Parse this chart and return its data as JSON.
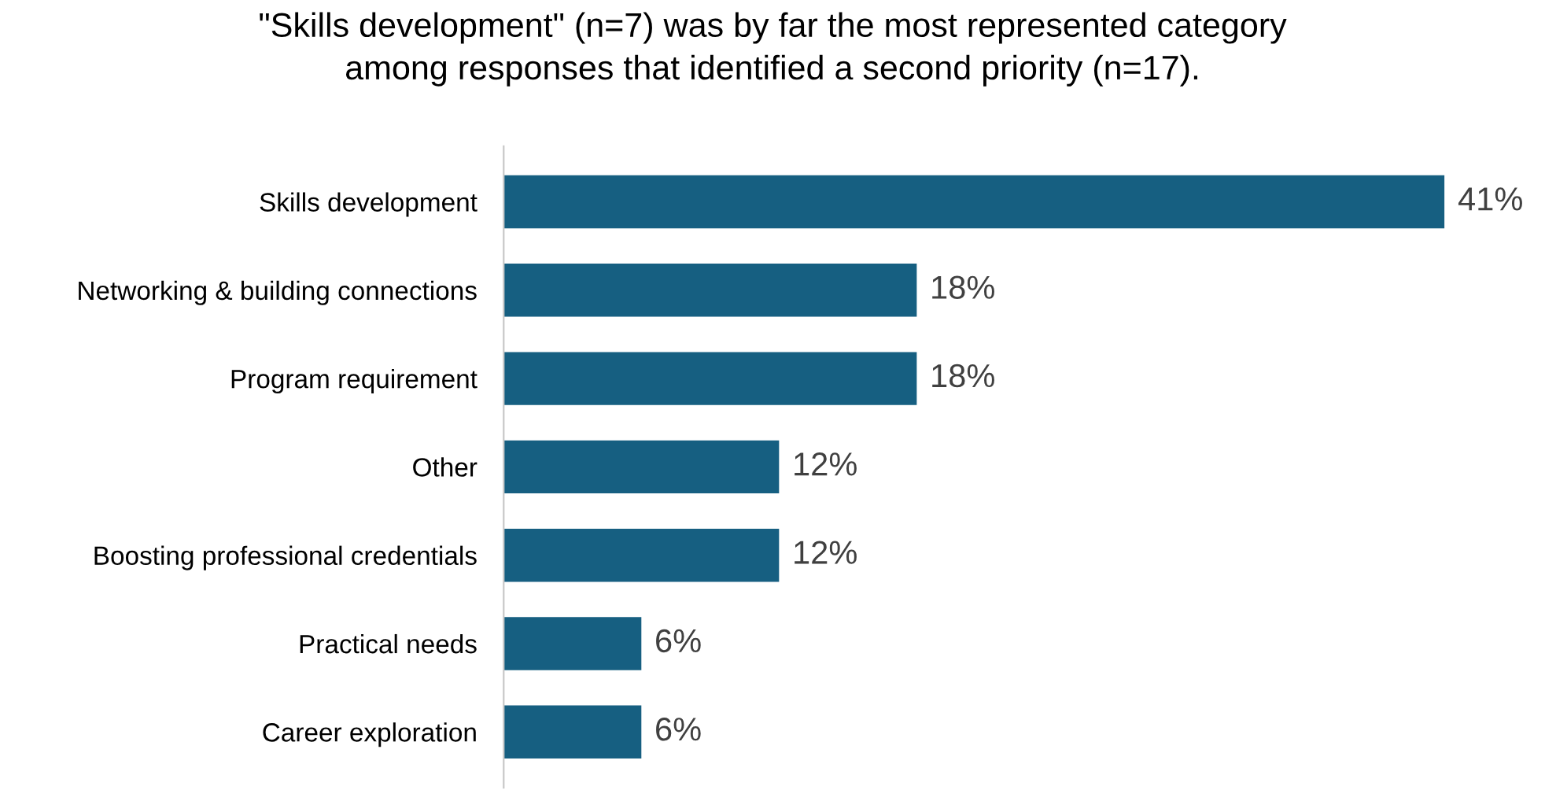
{
  "chart_data": {
    "type": "bar",
    "orientation": "horizontal",
    "title": "\"Skills development\" (n=7) was by far the most represented category\namong responses that identified a second priority (n=17).",
    "categories": [
      "Skills development",
      "Networking & building connections",
      "Program requirement",
      "Other",
      "Boosting professional credentials",
      "Practical needs",
      "Career exploration"
    ],
    "values": [
      41,
      18,
      18,
      12,
      12,
      6,
      6
    ],
    "value_labels": [
      "41%",
      "18%",
      "18%",
      "12%",
      "12%",
      "6%",
      "6%"
    ],
    "color": "#165f81",
    "grid": false,
    "legend": false
  }
}
